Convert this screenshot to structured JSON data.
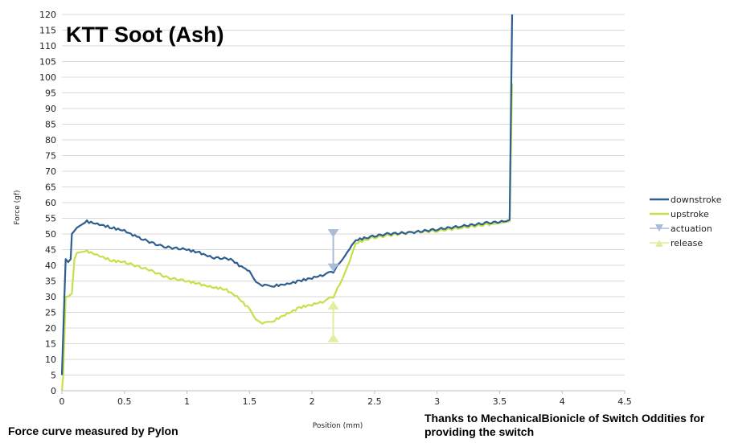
{
  "chart_data": {
    "type": "line",
    "title": "KTT Soot (Ash)",
    "xlabel": "Position (mm)",
    "ylabel": "Force (gf)",
    "xlim": [
      0,
      4.5
    ],
    "ylim": [
      0,
      120
    ],
    "x_ticks": [
      "0",
      "0.5",
      "1",
      "1.5",
      "2",
      "2.5",
      "3",
      "3.5",
      "4",
      "4.5"
    ],
    "y_ticks": [
      "0",
      "5",
      "10",
      "15",
      "20",
      "25",
      "30",
      "35",
      "40",
      "45",
      "50",
      "55",
      "60",
      "65",
      "70",
      "75",
      "80",
      "85",
      "90",
      "95",
      "100",
      "105",
      "110",
      "115",
      "120"
    ],
    "grid": "horizontal",
    "legend_position": "right",
    "series": [
      {
        "name": "downstroke",
        "color": "#2f5f8f",
        "points": [
          [
            0,
            5
          ],
          [
            0.02,
            30
          ],
          [
            0.03,
            42
          ],
          [
            0.05,
            41
          ],
          [
            0.07,
            42
          ],
          [
            0.08,
            50
          ],
          [
            0.12,
            52
          ],
          [
            0.2,
            54
          ],
          [
            0.3,
            53
          ],
          [
            0.4,
            52
          ],
          [
            0.5,
            51
          ],
          [
            0.6,
            49
          ],
          [
            0.8,
            46
          ],
          [
            1.0,
            45
          ],
          [
            1.1,
            44
          ],
          [
            1.2,
            42.5
          ],
          [
            1.35,
            42
          ],
          [
            1.45,
            39
          ],
          [
            1.5,
            38
          ],
          [
            1.57,
            34
          ],
          [
            1.62,
            33.5
          ],
          [
            1.7,
            33.5
          ],
          [
            1.8,
            34
          ],
          [
            1.9,
            35
          ],
          [
            2.0,
            36
          ],
          [
            2.1,
            37
          ],
          [
            2.17,
            38
          ],
          [
            2.22,
            41
          ],
          [
            2.3,
            45
          ],
          [
            2.35,
            48
          ],
          [
            2.45,
            49
          ],
          [
            2.6,
            50
          ],
          [
            2.8,
            50.5
          ],
          [
            3.0,
            51.5
          ],
          [
            3.2,
            52.5
          ],
          [
            3.4,
            53.5
          ],
          [
            3.55,
            54
          ],
          [
            3.58,
            54.5
          ],
          [
            3.6,
            120
          ]
        ]
      },
      {
        "name": "upstroke",
        "color": "#c5e04a",
        "points": [
          [
            0,
            0
          ],
          [
            0.01,
            5
          ],
          [
            0.03,
            30
          ],
          [
            0.05,
            30
          ],
          [
            0.08,
            31
          ],
          [
            0.1,
            42
          ],
          [
            0.12,
            44
          ],
          [
            0.2,
            44.5
          ],
          [
            0.3,
            43
          ],
          [
            0.4,
            41.5
          ],
          [
            0.5,
            41
          ],
          [
            0.7,
            38.5
          ],
          [
            0.85,
            36
          ],
          [
            1.0,
            35
          ],
          [
            1.1,
            34
          ],
          [
            1.2,
            33
          ],
          [
            1.3,
            32.5
          ],
          [
            1.4,
            30
          ],
          [
            1.5,
            26
          ],
          [
            1.57,
            22
          ],
          [
            1.62,
            21.5
          ],
          [
            1.7,
            22.5
          ],
          [
            1.8,
            24.5
          ],
          [
            1.9,
            26.5
          ],
          [
            2.0,
            27.5
          ],
          [
            2.1,
            28.5
          ],
          [
            2.17,
            30
          ],
          [
            2.22,
            34
          ],
          [
            2.3,
            41
          ],
          [
            2.35,
            47
          ],
          [
            2.45,
            48.5
          ],
          [
            2.6,
            49.5
          ],
          [
            2.8,
            50.5
          ],
          [
            3.0,
            51
          ],
          [
            3.2,
            52
          ],
          [
            3.4,
            53
          ],
          [
            3.5,
            53.5
          ],
          [
            3.58,
            54
          ],
          [
            3.6,
            98
          ]
        ]
      }
    ],
    "markers": [
      {
        "name": "actuation",
        "color": "#aabcd6",
        "x": 2.17,
        "y_from": 51.5,
        "y_to": 38,
        "direction": "down"
      },
      {
        "name": "release",
        "color": "#e1ee9e",
        "x": 2.17,
        "y_from": 15.5,
        "y_to": 28.5,
        "direction": "up"
      }
    ]
  },
  "footer": {
    "left": "Force curve measured by Pylon",
    "right": "Thanks to MechanicalBionicle of Switch Oddities for providing the switch"
  }
}
